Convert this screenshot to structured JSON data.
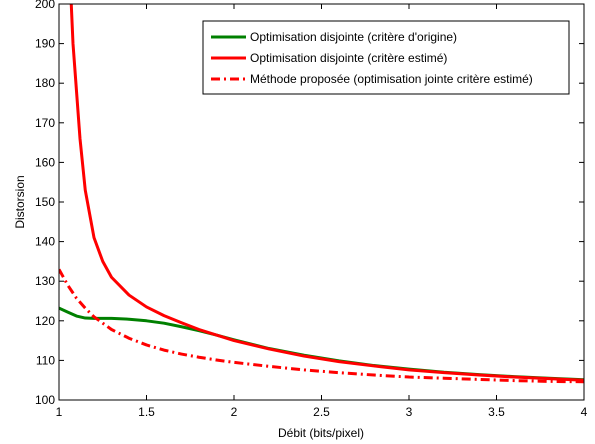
{
  "chart_data": {
    "type": "line",
    "title": "",
    "xlabel": "Débit (bits/pixel)",
    "ylabel": "Distorsion",
    "xlim": [
      1,
      4
    ],
    "ylim": [
      100,
      200
    ],
    "xticks": [
      1,
      1.5,
      2,
      2.5,
      3,
      3.5,
      4
    ],
    "yticks": [
      100,
      110,
      120,
      130,
      140,
      150,
      160,
      170,
      180,
      190,
      200
    ],
    "xtick_labels": [
      "1",
      "1.5",
      "2",
      "2.5",
      "3",
      "3.5",
      "4"
    ],
    "ytick_labels": [
      "100",
      "110",
      "120",
      "130",
      "140",
      "150",
      "160",
      "170",
      "180",
      "190",
      "200"
    ],
    "grid": false,
    "legend_position": "top-right",
    "series": [
      {
        "name": "Optimisation disjointe (critère d'origine)",
        "color": "#008000",
        "dash": "solid",
        "x": [
          1.0,
          1.05,
          1.1,
          1.15,
          1.2,
          1.3,
          1.4,
          1.5,
          1.6,
          1.7,
          1.8,
          1.9,
          2.0,
          2.2,
          2.4,
          2.6,
          2.8,
          3.0,
          3.2,
          3.4,
          3.6,
          3.8,
          4.0
        ],
        "y": [
          123.2,
          122.2,
          121.2,
          120.7,
          120.6,
          120.6,
          120.4,
          120.0,
          119.4,
          118.5,
          117.5,
          116.4,
          115.2,
          113.0,
          111.3,
          109.9,
          108.7,
          107.8,
          107.0,
          106.4,
          105.9,
          105.5,
          105.1
        ]
      },
      {
        "name": "Optimisation disjointe (critère estimé)",
        "color": "#ff0000",
        "dash": "solid",
        "x": [
          1.07,
          1.08,
          1.1,
          1.12,
          1.15,
          1.2,
          1.25,
          1.3,
          1.4,
          1.5,
          1.6,
          1.7,
          1.8,
          1.9,
          2.0,
          2.2,
          2.4,
          2.6,
          2.8,
          3.0,
          3.2,
          3.4,
          3.6,
          3.8,
          4.0
        ],
        "y": [
          200,
          190,
          178,
          166,
          153,
          141,
          135,
          131,
          126.5,
          123.5,
          121.3,
          119.5,
          117.8,
          116.4,
          115.0,
          112.9,
          111.1,
          109.7,
          108.6,
          107.6,
          106.9,
          106.3,
          105.8,
          105.4,
          105.0
        ]
      },
      {
        "name": "Méthode proposée (optimisation jointe critère estimé)",
        "color": "#ff0000",
        "dash": "dashdot",
        "x": [
          1.0,
          1.05,
          1.1,
          1.15,
          1.2,
          1.3,
          1.4,
          1.5,
          1.6,
          1.7,
          1.8,
          1.9,
          2.0,
          2.2,
          2.4,
          2.6,
          2.8,
          3.0,
          3.2,
          3.4,
          3.6,
          3.8,
          4.0
        ],
        "y": [
          133.0,
          129.0,
          125.7,
          123.2,
          121.0,
          117.8,
          115.6,
          113.9,
          112.6,
          111.6,
          110.8,
          110.1,
          109.5,
          108.5,
          107.6,
          106.9,
          106.3,
          105.8,
          105.5,
          105.2,
          104.9,
          104.7,
          104.6
        ]
      }
    ]
  }
}
